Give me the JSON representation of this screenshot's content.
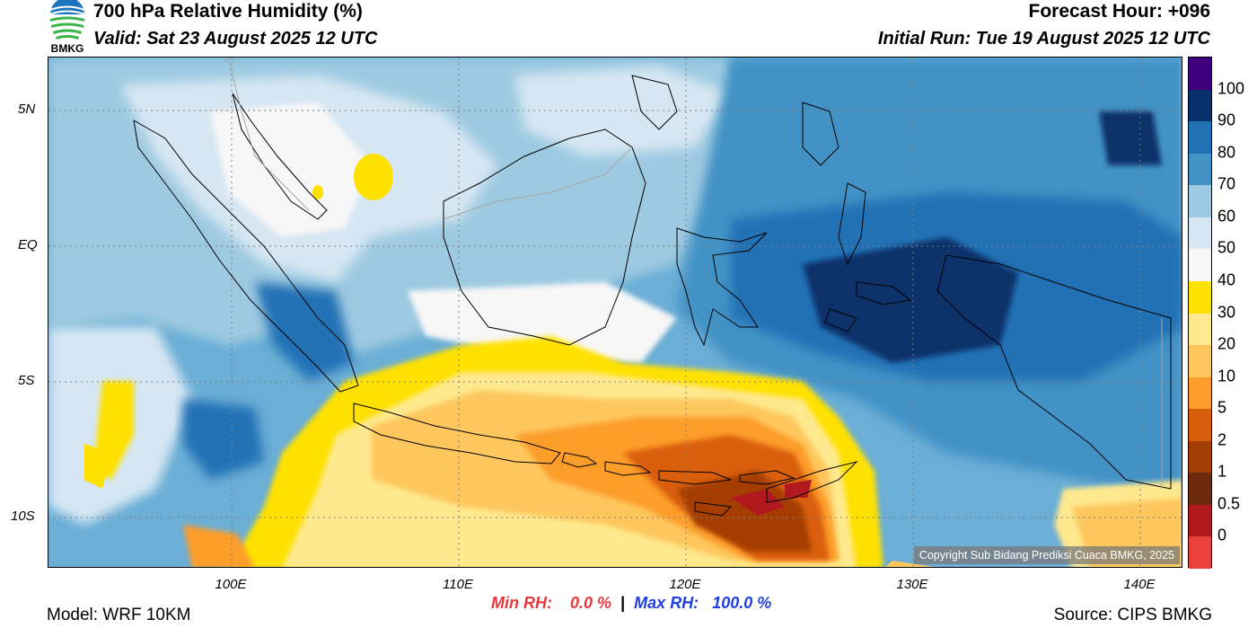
{
  "header": {
    "title": "700 hPa Relative Humidity (%)",
    "valid": "Valid: Sat 23 August 2025 12 UTC",
    "forecast_hour": "Forecast Hour: +096",
    "initial_run": "Initial Run: Tue 19 August 2025 12 UTC",
    "logo_text": "BMKG"
  },
  "map": {
    "lat_labels": [
      "5N",
      "EQ",
      "5S",
      "10S"
    ],
    "lon_labels": [
      "100E",
      "110E",
      "120E",
      "130E",
      "140E"
    ],
    "copyright": "Copyright Sub Bidang Prediksi Cuaca BMKG, 2025"
  },
  "colorbar": {
    "labels": [
      "100",
      "90",
      "80",
      "70",
      "60",
      "50",
      "40",
      "30",
      "20",
      "10",
      "5",
      "2",
      "1",
      "0.5",
      "0"
    ],
    "colors": [
      "#3f007d",
      "#08306b",
      "#2171b5",
      "#4292c6",
      "#9ecae1",
      "#d6e7f3",
      "#f7f7f7",
      "#ffe100",
      "#ffe98e",
      "#fec75d",
      "#fd9d2c",
      "#d95e0c",
      "#a53e05",
      "#6e2a0c",
      "#b0191e",
      "#e8403a"
    ]
  },
  "stats": {
    "min_label": "Min RH:",
    "min_value": "0.0 %",
    "separator": "|",
    "max_label": "Max RH:",
    "max_value": "100.0 %"
  },
  "footer": {
    "model": "Model: WRF 10KM",
    "source": "Source: CIPS BMKG"
  }
}
